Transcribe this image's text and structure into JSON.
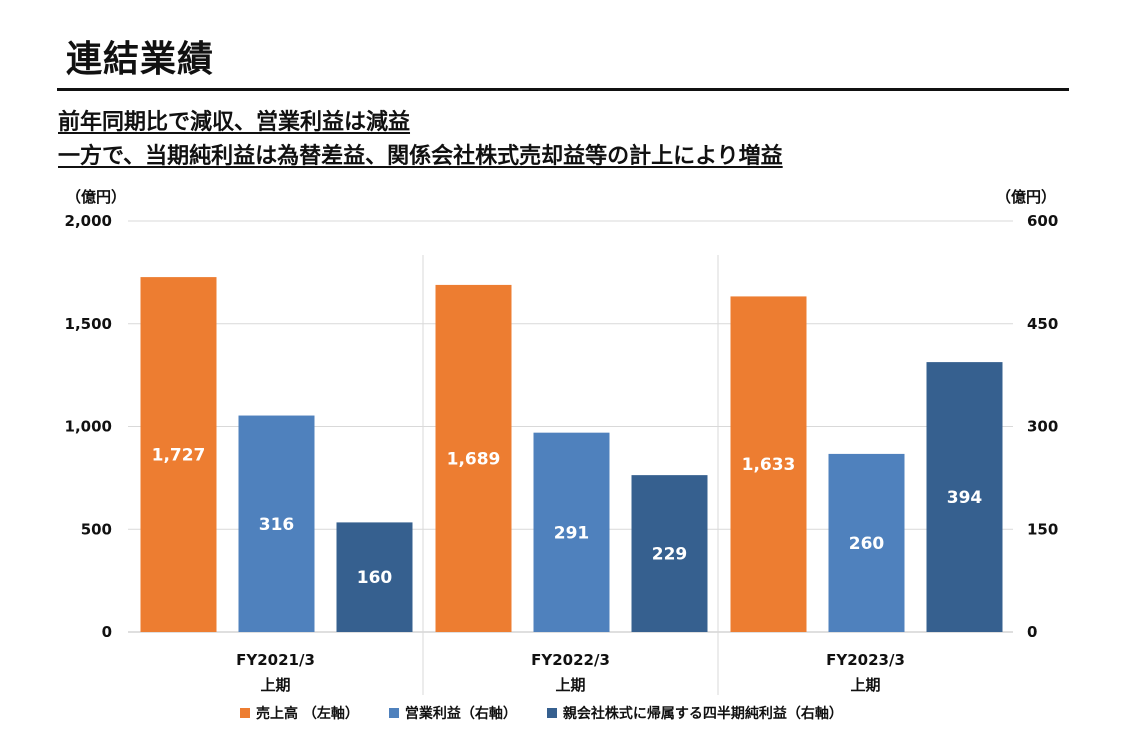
{
  "title": "連結業績",
  "subtitle": {
    "line1": "前年同期比で減収、営業利益は減益",
    "line2": "一方で、当期純利益は為替差益、関係会社株式売却益等の計上により増益"
  },
  "chart_data": {
    "type": "bar",
    "categories": [
      "FY2021/3",
      "FY2022/3",
      "FY2023/3"
    ],
    "category_sublabel": "上期",
    "left_axis": {
      "unit_label": "（億円）",
      "range": [
        0,
        2000
      ],
      "ticks": [
        "0",
        "500",
        "1,000",
        "1,500",
        "2,000"
      ],
      "tick_values": [
        0,
        500,
        1000,
        1500,
        2000
      ]
    },
    "right_axis": {
      "unit_label": "（億円）",
      "range": [
        0,
        600
      ],
      "ticks": [
        "0",
        "150",
        "300",
        "450",
        "600"
      ],
      "tick_values": [
        0,
        150,
        300,
        450,
        600
      ]
    },
    "series": [
      {
        "name": "売上高 （左軸）",
        "axis": "left",
        "color": "#ED7D31",
        "values": [
          1727,
          1689,
          1633
        ],
        "labels": [
          "1,727",
          "1,689",
          "1,633"
        ]
      },
      {
        "name": "営業利益（右軸）",
        "axis": "right",
        "color": "#4F81BD",
        "values": [
          316,
          291,
          260
        ],
        "labels": [
          "316",
          "291",
          "260"
        ]
      },
      {
        "name": "親会社株式に帰属する四半期純利益（右軸）",
        "axis": "right",
        "color": "#36608F",
        "values": [
          160,
          229,
          394
        ],
        "labels": [
          "160",
          "229",
          "394"
        ]
      }
    ],
    "grid": true
  }
}
